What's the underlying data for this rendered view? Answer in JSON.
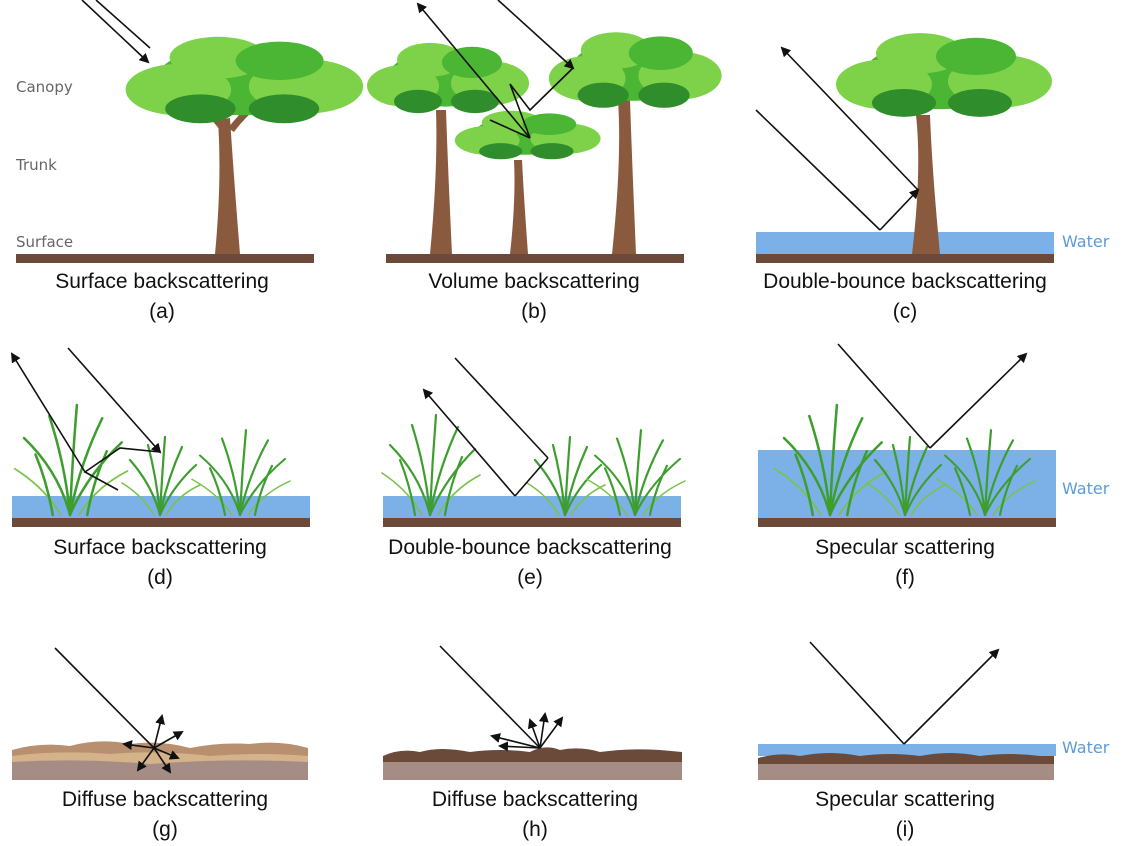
{
  "side_labels": {
    "canopy": "Canopy",
    "trunk": "Trunk",
    "surface": "Surface"
  },
  "water_label": "Water",
  "panels": [
    {
      "id": "a",
      "caption": "Surface backscattering",
      "letter": "(a)"
    },
    {
      "id": "b",
      "caption": "Volume backscattering",
      "letter": "(b)"
    },
    {
      "id": "c",
      "caption": "Double-bounce backscattering",
      "letter": "(c)"
    },
    {
      "id": "d",
      "caption": "Surface backscattering",
      "letter": "(d)"
    },
    {
      "id": "e",
      "caption": "Double-bounce backscattering",
      "letter": "(e)"
    },
    {
      "id": "f",
      "caption": "Specular scattering",
      "letter": "(f)"
    },
    {
      "id": "g",
      "caption": "Diffuse backscattering",
      "letter": "(g)"
    },
    {
      "id": "h",
      "caption": "Diffuse backscattering",
      "letter": "(h)"
    },
    {
      "id": "i",
      "caption": "Specular scattering",
      "letter": "(i)"
    }
  ],
  "colors": {
    "water": "#6ea8e6",
    "ground": "#6b4a3a",
    "trunk": "#8a5a3e",
    "foliage": "#4bb534",
    "water_text": "#5b9bdb"
  }
}
